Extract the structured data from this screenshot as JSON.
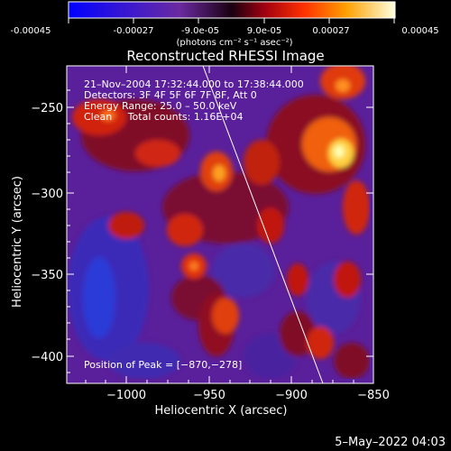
{
  "colorbar": {
    "tick_labels": [
      "-0.00045",
      "-0.00027",
      "-9.0e-05",
      "9.0e-05",
      "0.00027",
      "0.00045"
    ],
    "units": "(photons cm⁻² s⁻¹ asec⁻²)"
  },
  "plot": {
    "title": "Reconstructed RHESSI Image",
    "x_axis": {
      "label": "Heliocentric X (arcsec)",
      "tick_labels": [
        "−1000",
        "−950",
        "−900",
        "−850"
      ]
    },
    "y_axis": {
      "label": "Heliocentric Y (arcsec)",
      "tick_labels": [
        "−250",
        "−300",
        "−350",
        "−400"
      ]
    },
    "annotations": {
      "time_range": "21–Nov–2004 17:32:44.000 to 17:38:44.000",
      "detectors": "Detectors: 3F 4F 5F 6F 7F 8F, Att 0",
      "energy_range": "Energy Range: 25.0 – 50.0 keV",
      "clean_counts": "Clean     Total counts: 1.16E+04",
      "peak_position": "Position of Peak = [−870,−278]"
    }
  },
  "footer": {
    "timestamp": "5–May–2022 04:03"
  }
}
